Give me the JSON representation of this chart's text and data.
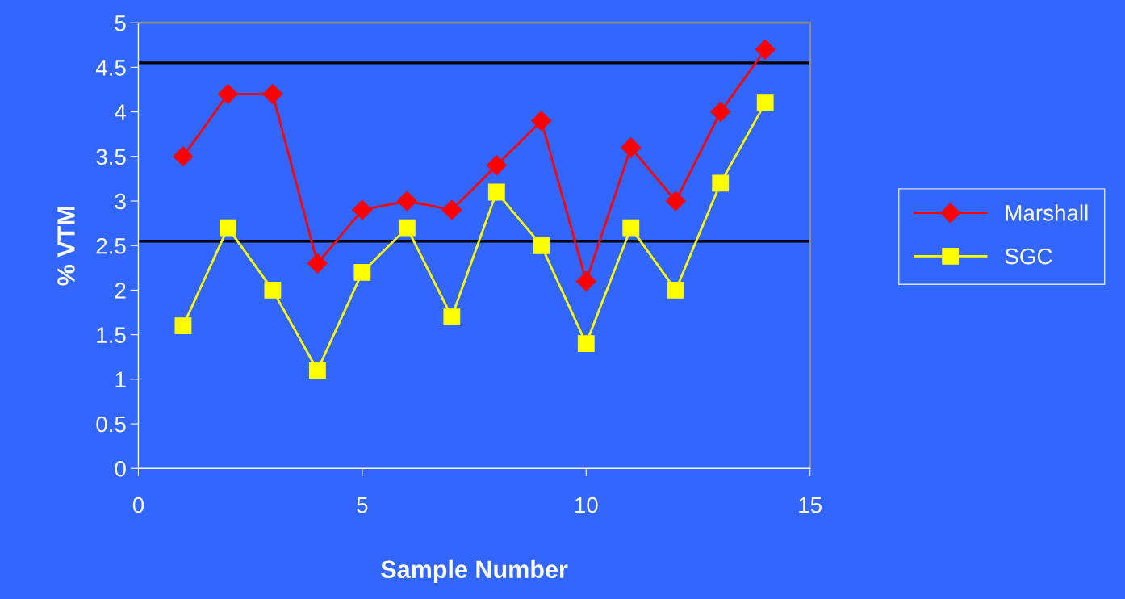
{
  "chart_data": {
    "type": "line",
    "xlabel": "Sample Number",
    "ylabel": "% VTM",
    "xlim": [
      0,
      15
    ],
    "xticks": [
      0,
      5,
      10,
      15
    ],
    "ylim": [
      0,
      5
    ],
    "yticks": [
      0,
      0.5,
      1,
      1.5,
      2,
      2.5,
      3,
      3.5,
      4,
      4.5,
      5
    ],
    "x": [
      1,
      2,
      3,
      4,
      5,
      6,
      7,
      8,
      9,
      10,
      11,
      12,
      13,
      14
    ],
    "series": [
      {
        "name": "Marshall",
        "color": "#ff0000",
        "marker": "diamond",
        "values": [
          3.5,
          4.2,
          4.2,
          2.3,
          2.9,
          3.0,
          2.9,
          3.4,
          3.9,
          2.1,
          3.6,
          3.0,
          4.0,
          4.7
        ]
      },
      {
        "name": "SGC",
        "color": "#ffff00",
        "marker": "square",
        "values": [
          1.6,
          2.7,
          2.0,
          1.1,
          2.2,
          2.7,
          1.7,
          3.1,
          2.5,
          1.4,
          2.7,
          2.0,
          3.2,
          4.1
        ]
      }
    ],
    "ref_lines": [
      {
        "axis": "y",
        "value": 4.55,
        "color": "#000000"
      },
      {
        "axis": "y",
        "value": 2.55,
        "color": "#000000"
      }
    ],
    "grid": false,
    "legend": "right",
    "line_style": "solid"
  }
}
